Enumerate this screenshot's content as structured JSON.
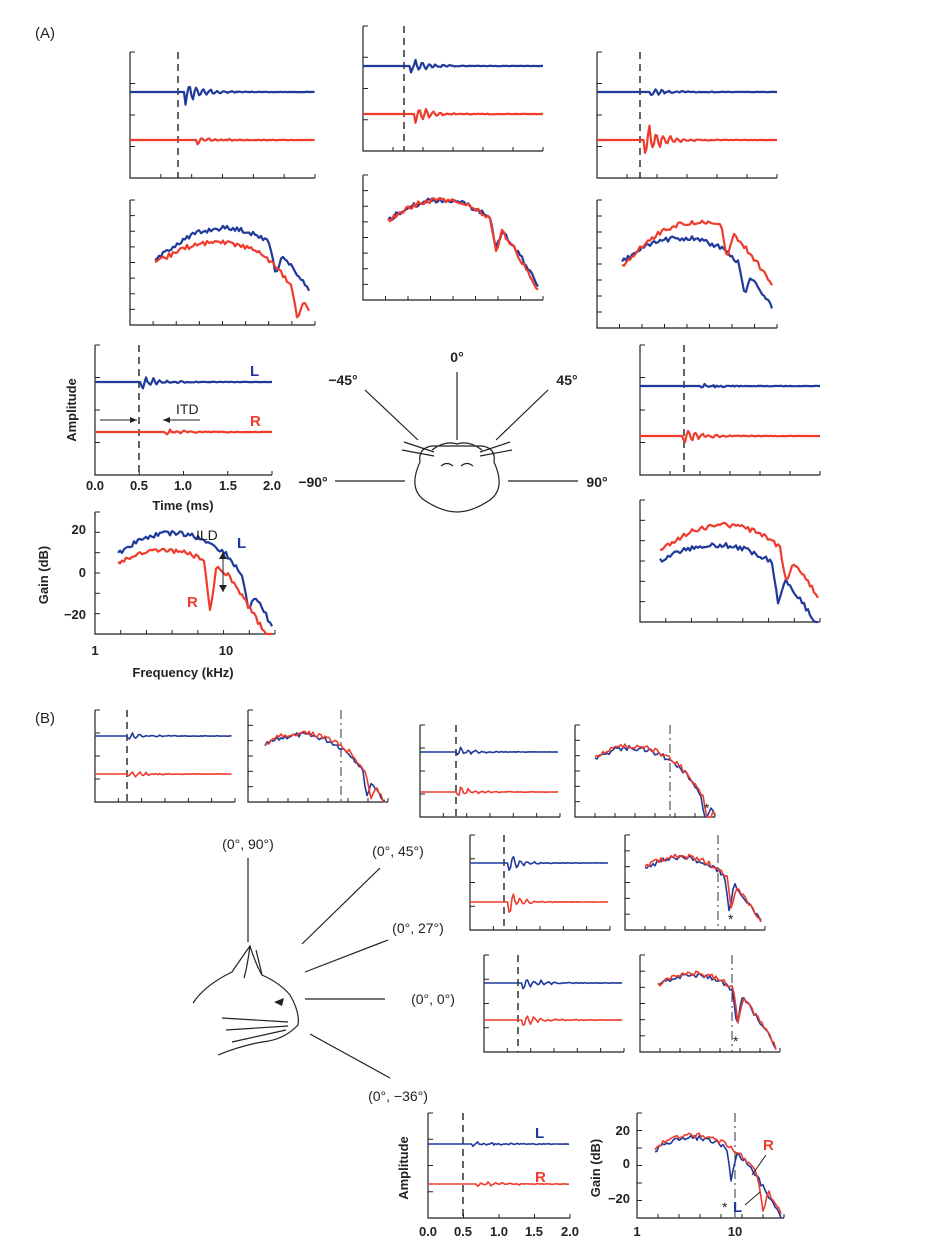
{
  "panel_labels": {
    "a": "(A)",
    "b": "(B)"
  },
  "panel_a": {
    "time_axis": {
      "label": "Time (ms)",
      "ylabel": "Amplitude",
      "ticks": [
        "0.0",
        "0.5",
        "1.0",
        "1.5",
        "2.0"
      ]
    },
    "freq_axis": {
      "label": "Frequency (kHz)",
      "ylabel": "Gain (dB)",
      "xticks": [
        "1",
        "10"
      ],
      "yticks": [
        "20",
        "0",
        "−20"
      ]
    },
    "trace_labels": {
      "left": "L",
      "right": "R"
    },
    "annotations": {
      "itd": "ITD",
      "ild": "ILD"
    },
    "azimuths": [
      "−90°",
      "−45°",
      "0°",
      "45°",
      "90°"
    ]
  },
  "panel_b": {
    "elevations": [
      "(0°, 90°)",
      "(0°, 45°)",
      "(0°, 27°)",
      "(0°, 0°)",
      "(0°, −36°)"
    ],
    "time_axis": {
      "ylabel": "Amplitude",
      "ticks": [
        "0.0",
        "0.5",
        "1.0",
        "1.5",
        "2.0"
      ]
    },
    "freq_axis": {
      "ylabel": "Gain (dB)",
      "xticks": [
        "1",
        "10"
      ],
      "yticks": [
        "20",
        "0",
        "−20"
      ]
    },
    "trace_labels": {
      "left": "L",
      "right": "R"
    },
    "notch_marker": "*"
  },
  "colors": {
    "left": "#1f3a9a",
    "right": "#ef3b2c"
  }
}
